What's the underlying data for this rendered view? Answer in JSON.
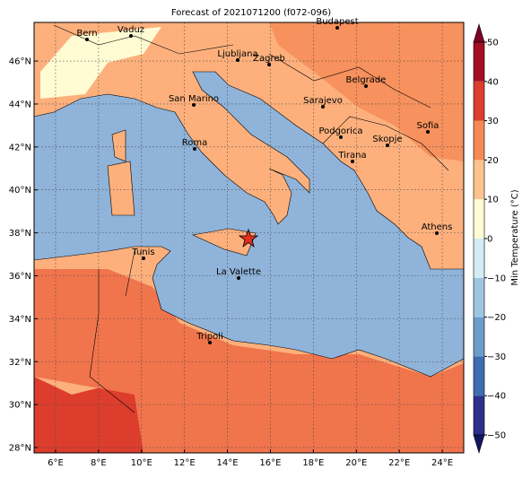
{
  "title": "Forecast of 2021071200 (f072-096)",
  "map": {
    "xlim": [
      5,
      25
    ],
    "ylim": [
      27.75,
      47.8
    ],
    "xticks": [
      {
        "value": 6,
        "label": "6°E"
      },
      {
        "value": 8,
        "label": "8°E"
      },
      {
        "value": 10,
        "label": "10°E"
      },
      {
        "value": 12,
        "label": "12°E"
      },
      {
        "value": 14,
        "label": "14°E"
      },
      {
        "value": 16,
        "label": "16°E"
      },
      {
        "value": 18,
        "label": "18°E"
      },
      {
        "value": 20,
        "label": "20°E"
      },
      {
        "value": 22,
        "label": "22°E"
      },
      {
        "value": 24,
        "label": "24°E"
      }
    ],
    "yticks": [
      {
        "value": 28,
        "label": "28°N"
      },
      {
        "value": 30,
        "label": "30°N"
      },
      {
        "value": 32,
        "label": "32°N"
      },
      {
        "value": 34,
        "label": "34°N"
      },
      {
        "value": 36,
        "label": "36°N"
      },
      {
        "value": 38,
        "label": "38°N"
      },
      {
        "value": 40,
        "label": "40°N"
      },
      {
        "value": 42,
        "label": "42°N"
      },
      {
        "value": 44,
        "label": "44°N"
      },
      {
        "value": 46,
        "label": "46°N"
      }
    ],
    "grid": true,
    "cities": [
      "Bern",
      "Vaduz",
      "Budapest",
      "Ljubljana",
      "Zagreb",
      "San Marino",
      "Belgrade",
      "Sarajevo",
      "Sofia",
      "Podgorica",
      "Skopje",
      "Roma",
      "Tirana",
      "Athens",
      "Tunis",
      "La Valette",
      "Tripoli"
    ]
  },
  "colorbar": {
    "label": "Min Temperature (°C)",
    "lim": [
      -50,
      50
    ],
    "ticks": [
      {
        "value": -50,
        "label": "−50"
      },
      {
        "value": -40,
        "label": "−40"
      },
      {
        "value": -30,
        "label": "−30"
      },
      {
        "value": -20,
        "label": "−20"
      },
      {
        "value": -10,
        "label": "−10"
      },
      0,
      10,
      20,
      30,
      40,
      50
    ],
    "colors": [
      "#2c2f8c",
      "#3f6eb0",
      "#6b9ccb",
      "#9fc6e1",
      "#d4ecf4",
      "#fffbd3",
      "#fdc48e",
      "#f58a55",
      "#dc3d2d",
      "#a50f26"
    ]
  }
}
